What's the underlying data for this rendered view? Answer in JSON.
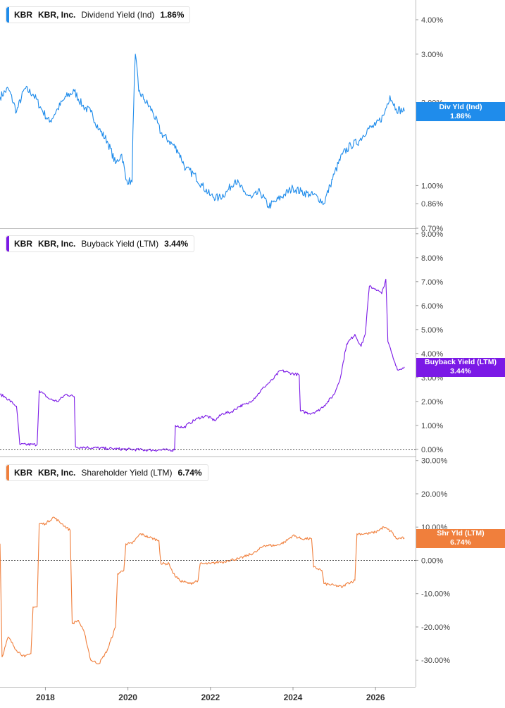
{
  "colors": {
    "dividend": "#1f8ceb",
    "buyback": "#7b19e6",
    "shareholder": "#f07f3c",
    "axis": "#bbbbbb"
  },
  "x_axis_labels": [
    "2018",
    "2020",
    "2022",
    "2024",
    "2026"
  ],
  "panels": [
    {
      "legend": {
        "ticker": "KBR",
        "company": "KBR, Inc.",
        "metric": "Dividend Yield (Ind)",
        "value": "1.86%"
      },
      "flag": {
        "label": "Div Yld (Ind)",
        "value": "1.86%"
      },
      "axis_labels": [
        "4.00%",
        "3.00%",
        "2.00%",
        "1.00%",
        "0.86%",
        "0.70%"
      ]
    },
    {
      "legend": {
        "ticker": "KBR",
        "company": "KBR, Inc.",
        "metric": "Buyback Yield (LTM)",
        "value": "3.44%"
      },
      "flag": {
        "label": "Buyback Yield (LTM)",
        "value": "3.44%"
      },
      "axis_labels": [
        "9.00%",
        "8.00%",
        "7.00%",
        "6.00%",
        "5.00%",
        "4.00%",
        "3.00%",
        "2.00%",
        "1.00%",
        "0.00%"
      ]
    },
    {
      "legend": {
        "ticker": "KBR",
        "company": "KBR, Inc.",
        "metric": "Shareholder Yield (LTM)",
        "value": "6.74%"
      },
      "flag": {
        "label": "Shr Yld (LTM)",
        "value": "6.74%"
      },
      "axis_labels": [
        "30.00%",
        "20.00%",
        "10.00%",
        "0.00%",
        "-10.00%",
        "-20.00%",
        "-30.00%"
      ]
    }
  ],
  "chart_data": [
    {
      "type": "line",
      "y_scale": "log",
      "ylim": [
        0.7,
        4.5
      ],
      "series": [
        {
          "name": "Dividend Yield (Ind)",
          "unit": "%",
          "points": [
            [
              2016.9,
              2.1
            ],
            [
              2017.1,
              2.25
            ],
            [
              2017.3,
              1.85
            ],
            [
              2017.5,
              2.25
            ],
            [
              2017.7,
              2.15
            ],
            [
              2017.9,
              1.9
            ],
            [
              2018.1,
              1.7
            ],
            [
              2018.3,
              1.9
            ],
            [
              2018.5,
              2.1
            ],
            [
              2018.7,
              2.2
            ],
            [
              2018.9,
              1.95
            ],
            [
              2019.1,
              1.85
            ],
            [
              2019.3,
              1.6
            ],
            [
              2019.5,
              1.45
            ],
            [
              2019.7,
              1.2
            ],
            [
              2019.85,
              1.3
            ],
            [
              2019.95,
              1.05
            ],
            [
              2020.1,
              1.03
            ],
            [
              2020.18,
              3.0
            ],
            [
              2020.26,
              2.2
            ],
            [
              2020.4,
              2.05
            ],
            [
              2020.6,
              1.85
            ],
            [
              2020.8,
              1.55
            ],
            [
              2021.0,
              1.45
            ],
            [
              2021.2,
              1.35
            ],
            [
              2021.4,
              1.15
            ],
            [
              2021.6,
              1.1
            ],
            [
              2021.8,
              1.0
            ],
            [
              2022.0,
              0.92
            ],
            [
              2022.2,
              0.9
            ],
            [
              2022.4,
              0.95
            ],
            [
              2022.6,
              1.05
            ],
            [
              2022.8,
              0.95
            ],
            [
              2023.0,
              0.9
            ],
            [
              2023.2,
              0.95
            ],
            [
              2023.4,
              0.84
            ],
            [
              2023.6,
              0.88
            ],
            [
              2023.8,
              0.93
            ],
            [
              2024.0,
              0.98
            ],
            [
              2024.2,
              0.95
            ],
            [
              2024.4,
              0.93
            ],
            [
              2024.6,
              0.91
            ],
            [
              2024.75,
              0.86
            ],
            [
              2024.9,
              1.0
            ],
            [
              2025.0,
              1.1
            ],
            [
              2025.2,
              1.3
            ],
            [
              2025.4,
              1.4
            ],
            [
              2025.6,
              1.45
            ],
            [
              2025.8,
              1.6
            ],
            [
              2026.0,
              1.65
            ],
            [
              2026.2,
              1.8
            ],
            [
              2026.35,
              2.12
            ],
            [
              2026.5,
              1.9
            ],
            [
              2026.7,
              1.86
            ]
          ]
        }
      ]
    },
    {
      "type": "line",
      "ylim": [
        -0.3,
        9.2
      ],
      "series": [
        {
          "name": "Buyback Yield (LTM)",
          "unit": "%",
          "points": [
            [
              2016.9,
              2.3
            ],
            [
              2017.05,
              2.15
            ],
            [
              2017.3,
              1.8
            ],
            [
              2017.38,
              0.2
            ],
            [
              2017.8,
              0.2
            ],
            [
              2017.85,
              2.45
            ],
            [
              2018.1,
              2.1
            ],
            [
              2018.3,
              2.0
            ],
            [
              2018.5,
              2.3
            ],
            [
              2018.7,
              2.2
            ],
            [
              2018.73,
              0.1
            ],
            [
              2019.0,
              0.08
            ],
            [
              2019.5,
              0.03
            ],
            [
              2020.0,
              0.0
            ],
            [
              2020.5,
              -0.03
            ],
            [
              2021.0,
              -0.03
            ],
            [
              2021.13,
              -0.03
            ],
            [
              2021.15,
              1.0
            ],
            [
              2021.35,
              0.9
            ],
            [
              2021.5,
              1.1
            ],
            [
              2021.7,
              1.3
            ],
            [
              2021.9,
              1.4
            ],
            [
              2022.1,
              1.2
            ],
            [
              2022.3,
              1.5
            ],
            [
              2022.5,
              1.55
            ],
            [
              2022.7,
              1.8
            ],
            [
              2022.9,
              1.9
            ],
            [
              2023.1,
              2.2
            ],
            [
              2023.3,
              2.6
            ],
            [
              2023.5,
              2.9
            ],
            [
              2023.7,
              3.3
            ],
            [
              2023.9,
              3.2
            ],
            [
              2024.15,
              3.1
            ],
            [
              2024.18,
              1.6
            ],
            [
              2024.4,
              1.5
            ],
            [
              2024.6,
              1.6
            ],
            [
              2024.8,
              1.9
            ],
            [
              2025.0,
              2.3
            ],
            [
              2025.15,
              3.0
            ],
            [
              2025.3,
              4.4
            ],
            [
              2025.5,
              4.8
            ],
            [
              2025.65,
              4.3
            ],
            [
              2025.75,
              4.8
            ],
            [
              2025.85,
              6.8
            ],
            [
              2026.0,
              6.7
            ],
            [
              2026.15,
              6.5
            ],
            [
              2026.25,
              7.1
            ],
            [
              2026.3,
              4.5
            ],
            [
              2026.45,
              3.7
            ],
            [
              2026.55,
              3.3
            ],
            [
              2026.7,
              3.44
            ]
          ]
        }
      ]
    },
    {
      "type": "line",
      "ylim": [
        -38,
        31
      ],
      "series": [
        {
          "name": "Shareholder Yield (LTM)",
          "unit": "%",
          "points": [
            [
              2016.9,
              5.0
            ],
            [
              2016.95,
              -29
            ],
            [
              2017.1,
              -23
            ],
            [
              2017.3,
              -27
            ],
            [
              2017.5,
              -29
            ],
            [
              2017.65,
              -28
            ],
            [
              2017.7,
              -14
            ],
            [
              2017.8,
              -14
            ],
            [
              2017.85,
              11
            ],
            [
              2018.0,
              11
            ],
            [
              2018.2,
              13
            ],
            [
              2018.4,
              11
            ],
            [
              2018.6,
              9
            ],
            [
              2018.65,
              -19
            ],
            [
              2018.8,
              -18
            ],
            [
              2018.95,
              -22
            ],
            [
              2019.1,
              -30
            ],
            [
              2019.3,
              -31
            ],
            [
              2019.5,
              -27
            ],
            [
              2019.7,
              -20
            ],
            [
              2019.75,
              -4
            ],
            [
              2019.9,
              -3
            ],
            [
              2019.95,
              5
            ],
            [
              2020.1,
              5
            ],
            [
              2020.3,
              8
            ],
            [
              2020.5,
              7
            ],
            [
              2020.75,
              6
            ],
            [
              2020.8,
              -1
            ],
            [
              2021.0,
              -1
            ],
            [
              2021.1,
              -4
            ],
            [
              2021.25,
              -6
            ],
            [
              2021.5,
              -7
            ],
            [
              2021.7,
              -6
            ],
            [
              2021.75,
              -1
            ],
            [
              2022.0,
              -1
            ],
            [
              2022.2,
              -0.5
            ],
            [
              2022.35,
              -0.5
            ],
            [
              2022.4,
              0
            ],
            [
              2022.7,
              0.5
            ],
            [
              2022.9,
              1.5
            ],
            [
              2023.1,
              2.5
            ],
            [
              2023.3,
              4.5
            ],
            [
              2023.6,
              4.5
            ],
            [
              2023.8,
              5.5
            ],
            [
              2024.0,
              7.5
            ],
            [
              2024.2,
              6.5
            ],
            [
              2024.45,
              6.5
            ],
            [
              2024.5,
              -2
            ],
            [
              2024.7,
              -3
            ],
            [
              2024.75,
              -7
            ],
            [
              2025.0,
              -7.5
            ],
            [
              2025.2,
              -8
            ],
            [
              2025.3,
              -7
            ],
            [
              2025.5,
              -6
            ],
            [
              2025.55,
              8
            ],
            [
              2025.8,
              8
            ],
            [
              2026.0,
              8.5
            ],
            [
              2026.2,
              10
            ],
            [
              2026.4,
              8.5
            ],
            [
              2026.5,
              6.5
            ],
            [
              2026.7,
              6.74
            ]
          ]
        }
      ]
    }
  ]
}
